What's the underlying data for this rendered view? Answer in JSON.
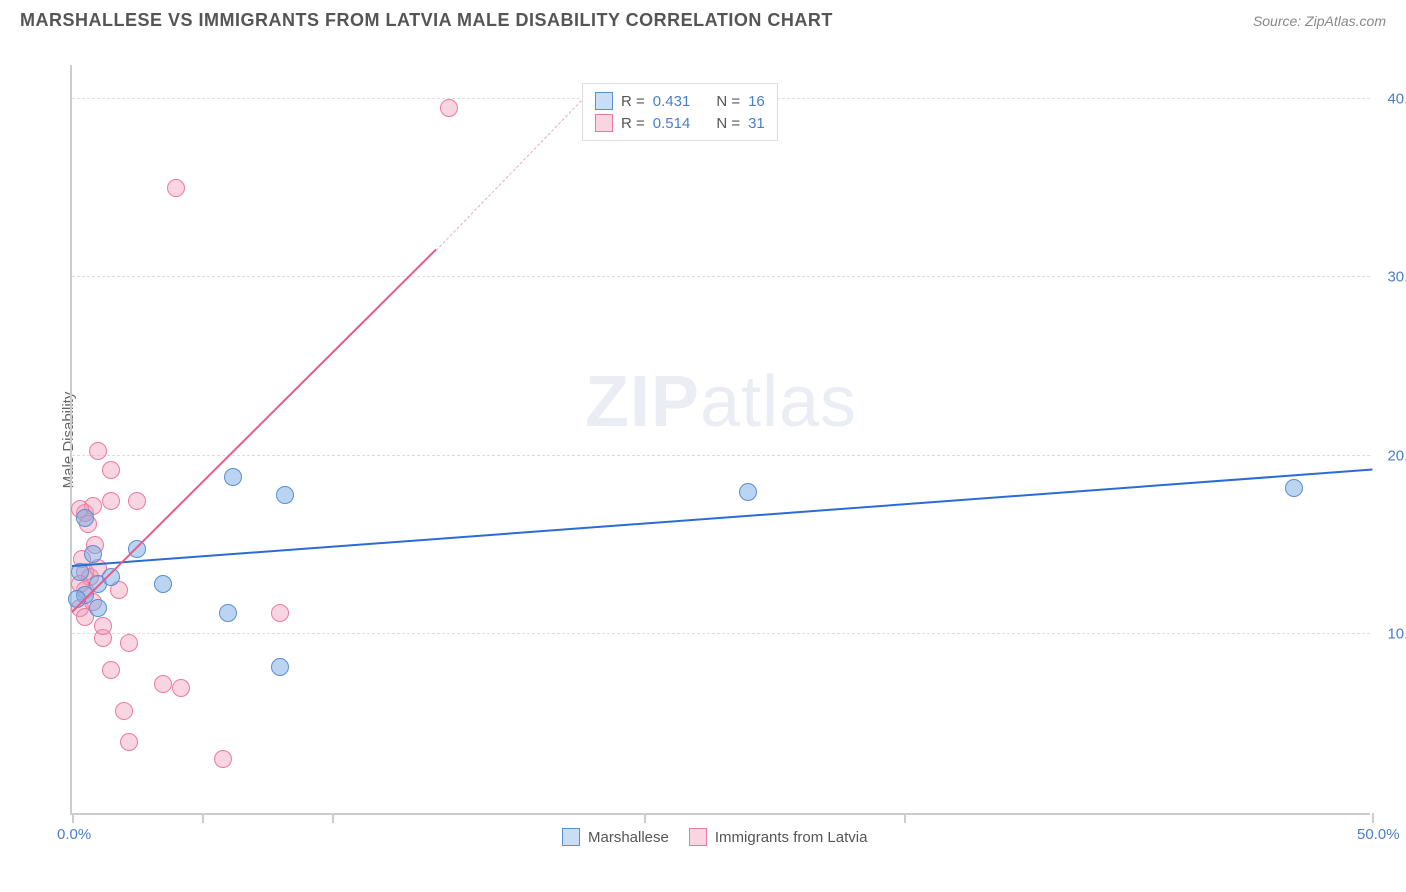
{
  "header": {
    "title": "MARSHALLESE VS IMMIGRANTS FROM LATVIA MALE DISABILITY CORRELATION CHART",
    "source": "Source: ZipAtlas.com"
  },
  "chart": {
    "type": "scatter",
    "ylabel": "Male Disability",
    "watermark_bold": "ZIP",
    "watermark_light": "atlas",
    "background_color": "#ffffff",
    "grid_color": "#dddddd",
    "axis_color": "#cccccc",
    "xlim": [
      0,
      50
    ],
    "ylim": [
      0,
      42
    ],
    "xticks": [
      0,
      5,
      10,
      22,
      32,
      50
    ],
    "xtick_labels": {
      "0": "0.0%",
      "50": "50.0%"
    },
    "yticks": [
      10,
      20,
      30,
      40
    ],
    "ytick_labels": {
      "10": "10.0%",
      "20": "20.0%",
      "30": "30.0%",
      "40": "40.0%"
    },
    "marker_size": 18,
    "series": {
      "blue": {
        "name": "Marshallese",
        "color_fill": "rgba(120,170,230,0.5)",
        "color_border": "#5a8fd0",
        "R": "0.431",
        "N": "16",
        "points": [
          [
            0.5,
            12.2
          ],
          [
            0.8,
            14.5
          ],
          [
            0.5,
            16.5
          ],
          [
            1.0,
            12.8
          ],
          [
            1.0,
            11.5
          ],
          [
            2.5,
            14.8
          ],
          [
            3.5,
            12.8
          ],
          [
            6.2,
            18.8
          ],
          [
            8.2,
            17.8
          ],
          [
            6.0,
            11.2
          ],
          [
            8.0,
            8.2
          ],
          [
            26.0,
            18.0
          ],
          [
            47.0,
            18.2
          ],
          [
            0.3,
            13.5
          ],
          [
            1.5,
            13.2
          ],
          [
            0.2,
            12
          ]
        ],
        "trend": {
          "x1": 0,
          "y1": 13.8,
          "x2": 50,
          "y2": 19.2,
          "color": "#2b6cd4"
        }
      },
      "pink": {
        "name": "Immigrants from Latvia",
        "color_fill": "rgba(240,150,180,0.4)",
        "color_border": "#ea7aa0",
        "R": "0.514",
        "N": "31",
        "points": [
          [
            0.3,
            11.5
          ],
          [
            0.5,
            12.5
          ],
          [
            0.7,
            13.2
          ],
          [
            0.5,
            16.8
          ],
          [
            0.8,
            17.2
          ],
          [
            1.5,
            17.5
          ],
          [
            1.5,
            19.2
          ],
          [
            2.5,
            17.5
          ],
          [
            1.0,
            20.3
          ],
          [
            0.5,
            13.5
          ],
          [
            1.2,
            9.8
          ],
          [
            2.2,
            9.5
          ],
          [
            1.5,
            8.0
          ],
          [
            2.2,
            4.0
          ],
          [
            2.0,
            5.7
          ],
          [
            4.2,
            7.0
          ],
          [
            3.5,
            7.2
          ],
          [
            5.8,
            3.0
          ],
          [
            8.0,
            11.2
          ],
          [
            4.0,
            35.0
          ],
          [
            14.5,
            39.5
          ],
          [
            0.3,
            12.8
          ],
          [
            0.4,
            14.2
          ],
          [
            0.8,
            11.8
          ],
          [
            1.8,
            12.5
          ],
          [
            1.2,
            10.5
          ],
          [
            0.6,
            16.2
          ],
          [
            0.9,
            15.0
          ],
          [
            0.3,
            17.0
          ],
          [
            1.0,
            13.7
          ],
          [
            0.5,
            11.0
          ]
        ],
        "trend": {
          "x1": 0,
          "y1": 11.2,
          "x2": 14,
          "y2": 31.5,
          "color": "#e85a8a"
        },
        "trend_dashed": {
          "x1": 14,
          "y1": 31.5,
          "x2": 20,
          "y2": 40.5
        }
      }
    },
    "legend_top": {
      "rows": [
        {
          "swatch": "blue",
          "r_label": "R =",
          "r_val": "0.431",
          "n_label": "N =",
          "n_val": "16"
        },
        {
          "swatch": "pink",
          "r_label": "R =",
          "r_val": "0.514",
          "n_label": "N =",
          "n_val": "31"
        }
      ]
    },
    "legend_bottom": {
      "items": [
        {
          "swatch": "blue",
          "label": "Marshallese"
        },
        {
          "swatch": "pink",
          "label": "Immigrants from Latvia"
        }
      ]
    }
  }
}
